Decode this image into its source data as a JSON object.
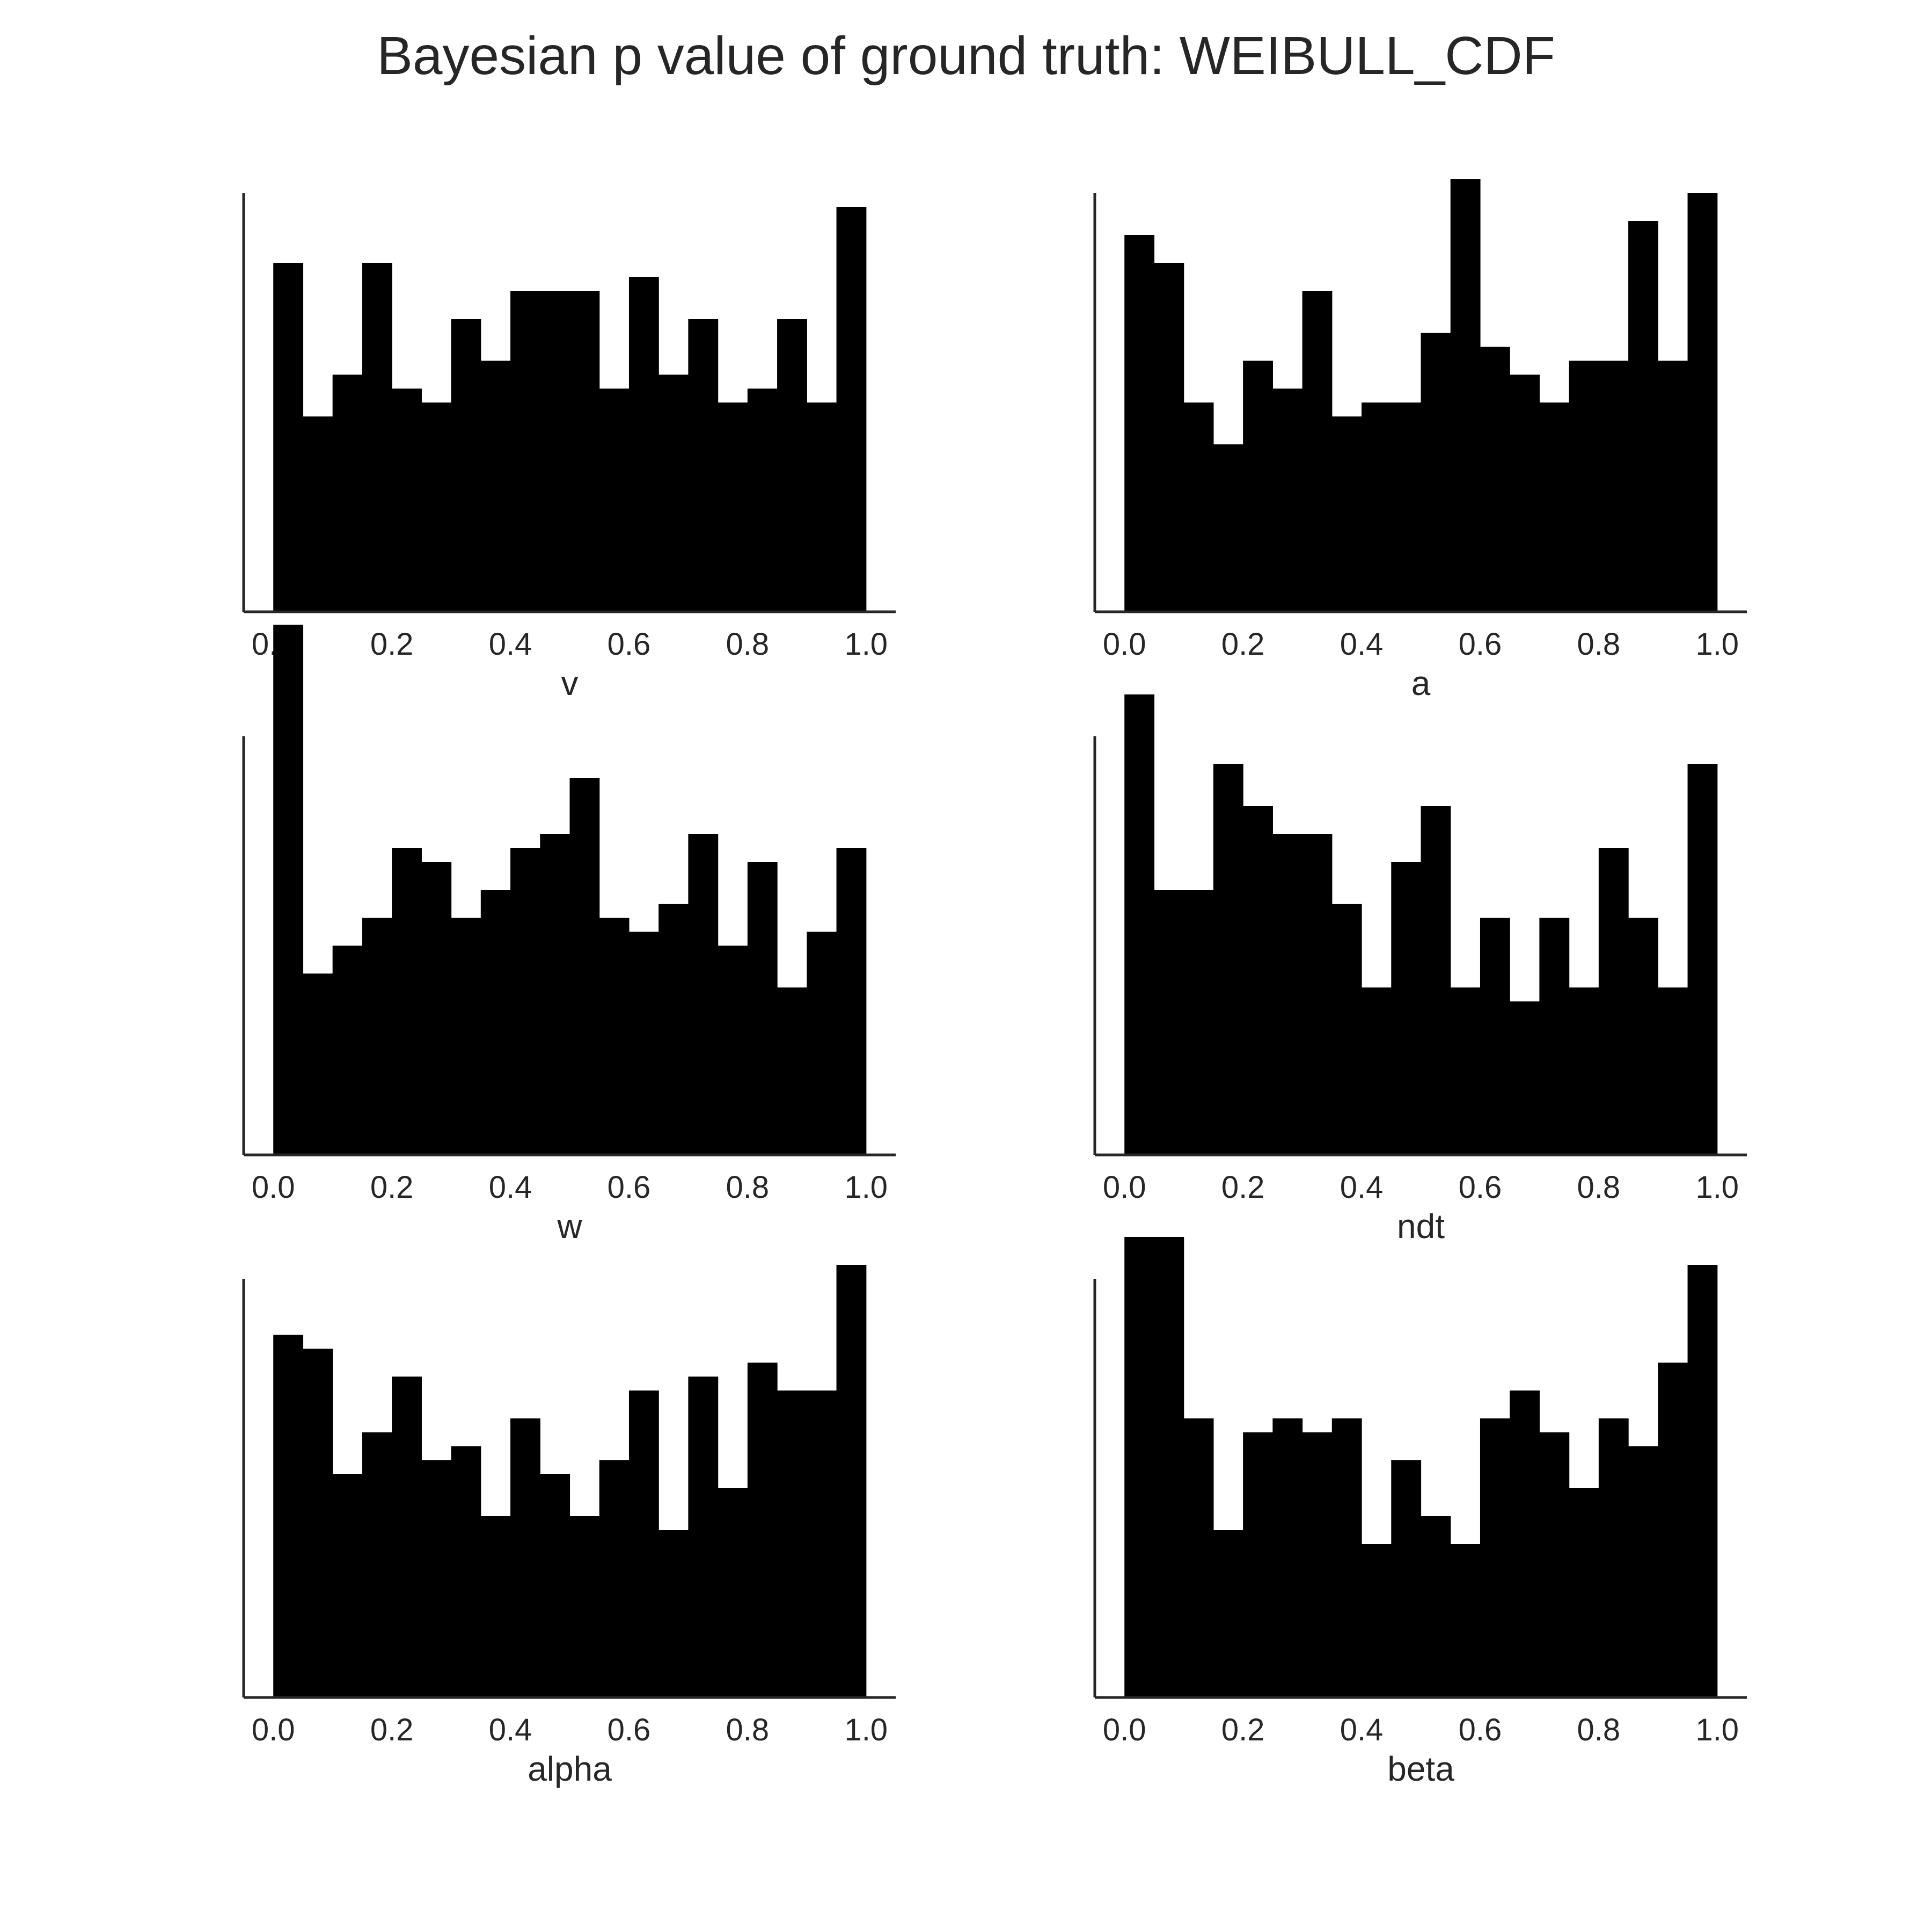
{
  "title": "Bayesian p value of ground truth: WEIBULL_CDF",
  "colors": {
    "bars": "#000000",
    "axes": "#262626",
    "background": "#ffffff"
  },
  "chart_data": [
    {
      "type": "bar",
      "xlabel": "v",
      "xlim": [
        -0.05,
        1.05
      ],
      "ylim": [
        0,
        30
      ],
      "xticks": [
        "0.0",
        "0.2",
        "0.4",
        "0.6",
        "0.8",
        "1.0"
      ],
      "bin_edges": [
        0.0,
        0.05,
        0.1,
        0.15,
        0.2,
        0.25,
        0.3,
        0.35,
        0.4,
        0.45,
        0.5,
        0.55,
        0.6,
        0.65,
        0.7,
        0.75,
        0.8,
        0.85,
        0.9,
        0.95,
        1.0
      ],
      "values": [
        25,
        14,
        17,
        25,
        16,
        15,
        21,
        18,
        23,
        23,
        23,
        16,
        24,
        17,
        21,
        15,
        16,
        21,
        15,
        29
      ]
    },
    {
      "type": "bar",
      "xlabel": "a",
      "xlim": [
        -0.05,
        1.05
      ],
      "ylim": [
        0,
        30
      ],
      "xticks": [
        "0.0",
        "0.2",
        "0.4",
        "0.6",
        "0.8",
        "1.0"
      ],
      "bin_edges": [
        0.0,
        0.05,
        0.1,
        0.15,
        0.2,
        0.25,
        0.3,
        0.35,
        0.4,
        0.45,
        0.5,
        0.55,
        0.6,
        0.65,
        0.7,
        0.75,
        0.8,
        0.85,
        0.9,
        0.95,
        1.0
      ],
      "values": [
        27,
        25,
        15,
        12,
        18,
        16,
        23,
        14,
        15,
        15,
        20,
        31,
        19,
        17,
        15,
        18,
        18,
        28,
        18,
        30
      ]
    },
    {
      "type": "bar",
      "xlabel": "w",
      "xlim": [
        -0.05,
        1.05
      ],
      "ylim": [
        0,
        30
      ],
      "xticks": [
        "0.0",
        "0.2",
        "0.4",
        "0.6",
        "0.8",
        "1.0"
      ],
      "bin_edges": [
        0.0,
        0.05,
        0.1,
        0.15,
        0.2,
        0.25,
        0.3,
        0.35,
        0.4,
        0.45,
        0.5,
        0.55,
        0.6,
        0.65,
        0.7,
        0.75,
        0.8,
        0.85,
        0.9,
        0.95,
        1.0
      ],
      "values": [
        38,
        13,
        15,
        17,
        22,
        21,
        17,
        19,
        22,
        23,
        27,
        17,
        16,
        18,
        23,
        15,
        21,
        12,
        16,
        22
      ]
    },
    {
      "type": "bar",
      "xlabel": "ndt",
      "xlim": [
        -0.05,
        1.05
      ],
      "ylim": [
        0,
        30
      ],
      "xticks": [
        "0.0",
        "0.2",
        "0.4",
        "0.6",
        "0.8",
        "1.0"
      ],
      "bin_edges": [
        0.0,
        0.05,
        0.1,
        0.15,
        0.2,
        0.25,
        0.3,
        0.35,
        0.4,
        0.45,
        0.5,
        0.55,
        0.6,
        0.65,
        0.7,
        0.75,
        0.8,
        0.85,
        0.9,
        0.95,
        1.0
      ],
      "values": [
        33,
        19,
        19,
        28,
        25,
        23,
        23,
        18,
        12,
        21,
        25,
        12,
        17,
        11,
        17,
        12,
        22,
        17,
        12,
        28
      ]
    },
    {
      "type": "bar",
      "xlabel": "alpha",
      "xlim": [
        -0.05,
        1.05
      ],
      "ylim": [
        0,
        30
      ],
      "xticks": [
        "0.0",
        "0.2",
        "0.4",
        "0.6",
        "0.8",
        "1.0"
      ],
      "bin_edges": [
        0.0,
        0.05,
        0.1,
        0.15,
        0.2,
        0.25,
        0.3,
        0.35,
        0.4,
        0.45,
        0.5,
        0.55,
        0.6,
        0.65,
        0.7,
        0.75,
        0.8,
        0.85,
        0.9,
        0.95,
        1.0
      ],
      "values": [
        26,
        25,
        16,
        19,
        23,
        17,
        18,
        13,
        20,
        16,
        13,
        17,
        22,
        12,
        23,
        15,
        24,
        22,
        22,
        31
      ]
    },
    {
      "type": "bar",
      "xlabel": "beta",
      "xlim": [
        -0.05,
        1.05
      ],
      "ylim": [
        0,
        30
      ],
      "xticks": [
        "0.0",
        "0.2",
        "0.4",
        "0.6",
        "0.8",
        "1.0"
      ],
      "bin_edges": [
        0.0,
        0.05,
        0.1,
        0.15,
        0.2,
        0.25,
        0.3,
        0.35,
        0.4,
        0.45,
        0.5,
        0.55,
        0.6,
        0.65,
        0.7,
        0.75,
        0.8,
        0.85,
        0.9,
        0.95,
        1.0
      ],
      "values": [
        33,
        33,
        20,
        12,
        19,
        20,
        19,
        20,
        11,
        17,
        13,
        11,
        20,
        22,
        19,
        15,
        20,
        18,
        24,
        31
      ]
    }
  ]
}
